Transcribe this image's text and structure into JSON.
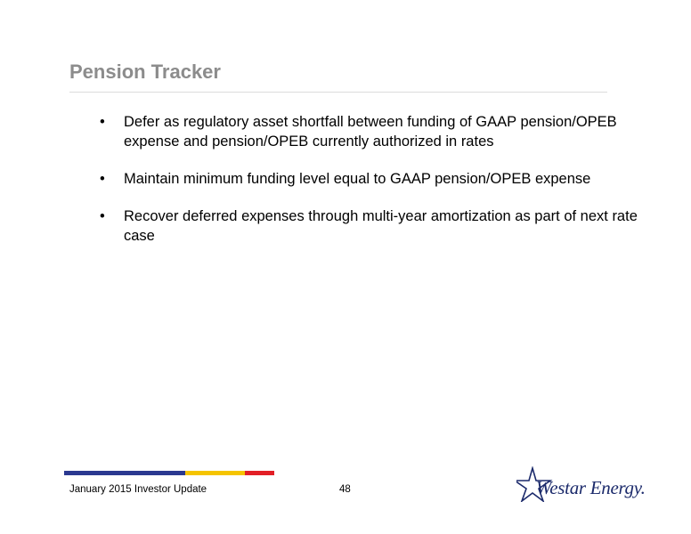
{
  "slide": {
    "title": "Pension Tracker",
    "bullets": [
      {
        "mark": "•",
        "text": "Defer as regulatory asset shortfall between funding of GAAP pension/OPEB expense and pension/OPEB currently authorized in rates"
      },
      {
        "mark": "•",
        "text": "Maintain minimum funding level equal to GAAP pension/OPEB expense"
      },
      {
        "mark": "•",
        "text": "Recover deferred expenses through multi-year amortization as part of next rate case"
      }
    ]
  },
  "footer": {
    "left_text": "January 2015 Investor Update",
    "page_number": "48",
    "colorbar": [
      "#2b3990",
      "#f5c400",
      "#e21f26"
    ]
  },
  "logo": {
    "text": "Westar Energy.",
    "star_icon": "star-outline-icon",
    "color": "#1b2a6b"
  }
}
